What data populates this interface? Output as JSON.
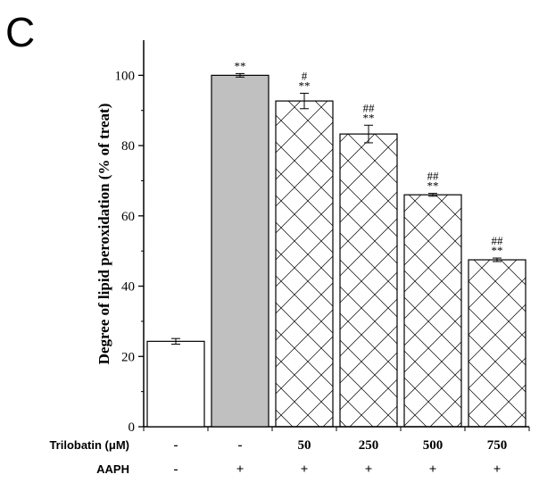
{
  "panel_label": "C",
  "chart_data": {
    "type": "bar",
    "ylabel": "Degree of lipid peroxidation (% of treat)",
    "ylim": [
      0,
      110
    ],
    "yticks": [
      0,
      20,
      40,
      60,
      80,
      100
    ],
    "bars": [
      {
        "value": 24.3,
        "error": 0.8,
        "fill": "white",
        "annotations": []
      },
      {
        "value": 100.0,
        "error": 0.5,
        "fill": "gray",
        "annotations": [
          "**"
        ]
      },
      {
        "value": 92.7,
        "error": 2.2,
        "fill": "crosshatch",
        "annotations": [
          "#",
          "**"
        ]
      },
      {
        "value": 83.3,
        "error": 2.5,
        "fill": "crosshatch",
        "annotations": [
          "##",
          "**"
        ]
      },
      {
        "value": 66.0,
        "error": 0.4,
        "fill": "crosshatch",
        "annotations": [
          "##",
          "**"
        ]
      },
      {
        "value": 47.5,
        "error": 0.5,
        "fill": "crosshatch",
        "annotations": [
          "##",
          "**"
        ]
      }
    ],
    "conditions": [
      {
        "name": "Trilobatin (μM)",
        "values": [
          "-",
          "-",
          "50",
          "250",
          "500",
          "750"
        ]
      },
      {
        "name": "AAPH",
        "values": [
          "-",
          "+",
          "+",
          "+",
          "+",
          "+"
        ]
      }
    ],
    "colors": {
      "gray_fill": "#c0c0c0",
      "outline": "#000000",
      "hatch": "#000000"
    }
  }
}
